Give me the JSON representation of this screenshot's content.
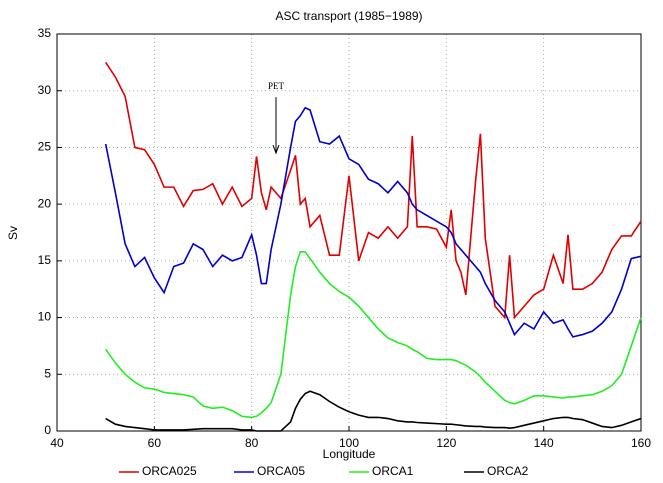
{
  "chart_data": {
    "type": "line",
    "title": "ASC transport (1985−1989)",
    "x_label": "Longitude",
    "y_label": "Sv",
    "x": [
      50,
      52,
      54,
      56,
      58,
      60,
      62,
      64,
      66,
      68,
      70,
      72,
      74,
      76,
      78,
      80,
      81,
      82,
      83,
      84,
      86,
      88,
      89,
      90,
      91,
      92,
      94,
      96,
      98,
      100,
      102,
      104,
      106,
      108,
      110,
      112,
      113,
      114,
      116,
      118,
      120,
      121,
      122,
      123,
      124,
      126,
      127,
      128,
      130,
      132,
      133,
      134,
      136,
      138,
      140,
      142,
      144,
      145,
      146,
      148,
      150,
      152,
      154,
      156,
      158,
      160
    ],
    "series": [
      {
        "name": "ORCA025",
        "color": "#e00000",
        "values": [
          32.5,
          31.2,
          29.5,
          25,
          24.8,
          23.5,
          21.5,
          21.5,
          19.8,
          21.2,
          21.3,
          21.8,
          20,
          21.5,
          19.8,
          20.5,
          24.2,
          21,
          19.5,
          21.5,
          20.5,
          23,
          24.3,
          20,
          20.5,
          18,
          19,
          15.5,
          15.5,
          22.5,
          15,
          17.5,
          17,
          18,
          17,
          18,
          26,
          18,
          18,
          17.8,
          16.2,
          19.5,
          15,
          14,
          12,
          22,
          26.2,
          17,
          11,
          10,
          15.5,
          10,
          11,
          12,
          12.5,
          15.5,
          13,
          17.3,
          12.5,
          12.5,
          13,
          14,
          16,
          17.2,
          17.2,
          18.5
        ]
      },
      {
        "name": "ORCA05",
        "color": "#0000d0",
        "values": [
          25.3,
          21,
          16.5,
          14.5,
          15.3,
          13.5,
          12.2,
          14.5,
          14.8,
          16.5,
          16,
          14.5,
          15.5,
          15,
          15.3,
          17.3,
          15.5,
          13,
          13,
          16,
          20,
          25,
          27.3,
          27.8,
          28.5,
          28.3,
          25.5,
          25.3,
          26,
          24,
          23.5,
          22.2,
          21.8,
          21,
          22,
          21,
          20,
          19.5,
          19,
          18.5,
          18,
          17.5,
          16.5,
          16,
          15.5,
          14.5,
          14,
          13,
          11.5,
          10.5,
          9.5,
          8.5,
          9.5,
          9,
          10.5,
          9.5,
          9.8,
          9,
          8.3,
          8.5,
          8.8,
          9.5,
          10.5,
          12.5,
          15.2,
          15.4
        ]
      },
      {
        "name": "ORCA1",
        "color": "#22ee22",
        "values": [
          7.2,
          6,
          5,
          4.3,
          3.8,
          3.7,
          3.4,
          3.3,
          3.2,
          3,
          2.2,
          2,
          2.1,
          1.8,
          1.3,
          1.2,
          1.3,
          1.6,
          2,
          2.5,
          5,
          12,
          14.5,
          15.8,
          15.8,
          15.2,
          14,
          13,
          12.3,
          11.8,
          11,
          10,
          9,
          8.2,
          7.8,
          7.5,
          7.2,
          7,
          6.4,
          6.3,
          6.3,
          6.3,
          6.2,
          6,
          5.8,
          5.2,
          4.8,
          4.3,
          3.5,
          2.7,
          2.5,
          2.4,
          2.7,
          3.1,
          3.1,
          3,
          2.9,
          3,
          3,
          3.1,
          3.2,
          3.5,
          4,
          5,
          7.5,
          10
        ]
      },
      {
        "name": "ORCA2",
        "color": "#000000",
        "values": [
          1.1,
          0.6,
          0.4,
          0.3,
          0.2,
          0.1,
          0.1,
          0.1,
          0.1,
          0.15,
          0.2,
          0.2,
          0.2,
          0.2,
          0.1,
          0.1,
          0,
          0,
          0,
          0,
          0,
          0.8,
          2,
          2.8,
          3.3,
          3.5,
          3.2,
          2.6,
          2.1,
          1.7,
          1.4,
          1.2,
          1.2,
          1.1,
          0.9,
          0.8,
          0.8,
          0.75,
          0.7,
          0.65,
          0.6,
          0.6,
          0.55,
          0.5,
          0.45,
          0.4,
          0.4,
          0.35,
          0.3,
          0.3,
          0.25,
          0.3,
          0.5,
          0.7,
          0.9,
          1.1,
          1.2,
          1.2,
          1.1,
          1,
          0.7,
          0.4,
          0.3,
          0.5,
          0.8,
          1.1
        ]
      }
    ],
    "xlim": [
      40,
      160
    ],
    "xticks": [
      40,
      60,
      80,
      100,
      120,
      140,
      160
    ],
    "ylim": [
      0,
      35
    ],
    "yticks": [
      0,
      5,
      10,
      15,
      20,
      25,
      30,
      35
    ],
    "grid": true,
    "legend": "bottom",
    "annotations": [
      {
        "text": "PET",
        "x": 85,
        "y": 24.5
      }
    ]
  }
}
